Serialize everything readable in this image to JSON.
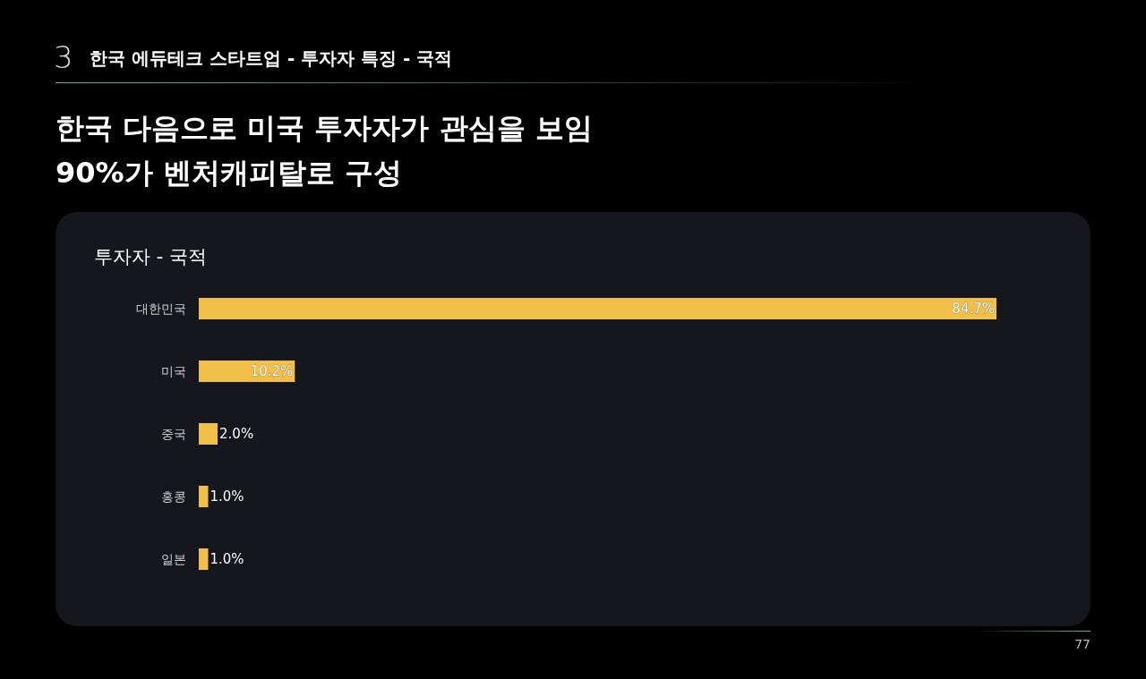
{
  "chart_data": {
    "type": "bar",
    "orientation": "horizontal",
    "title": "한국 에듀테크 스타트업 - 투자자 특징 - 국적",
    "subtitle": "한국 다음으로 미국 투자자가 관심을 보임\n90%가 벤처캐피탈로 구성",
    "xlabel": "투자자 - 국적",
    "categories": [
      "대한민국",
      "미국",
      "중국",
      "홍콩",
      "일본"
    ],
    "values": [
      84.7,
      10.2,
      2.0,
      1.0,
      1.0
    ],
    "value_labels": [
      "84.7%",
      "10.2%",
      "2.0%",
      "1.0%",
      "1.0%"
    ],
    "color": "#f2c04a",
    "annotations": [
      "3",
      "77"
    ]
  }
}
